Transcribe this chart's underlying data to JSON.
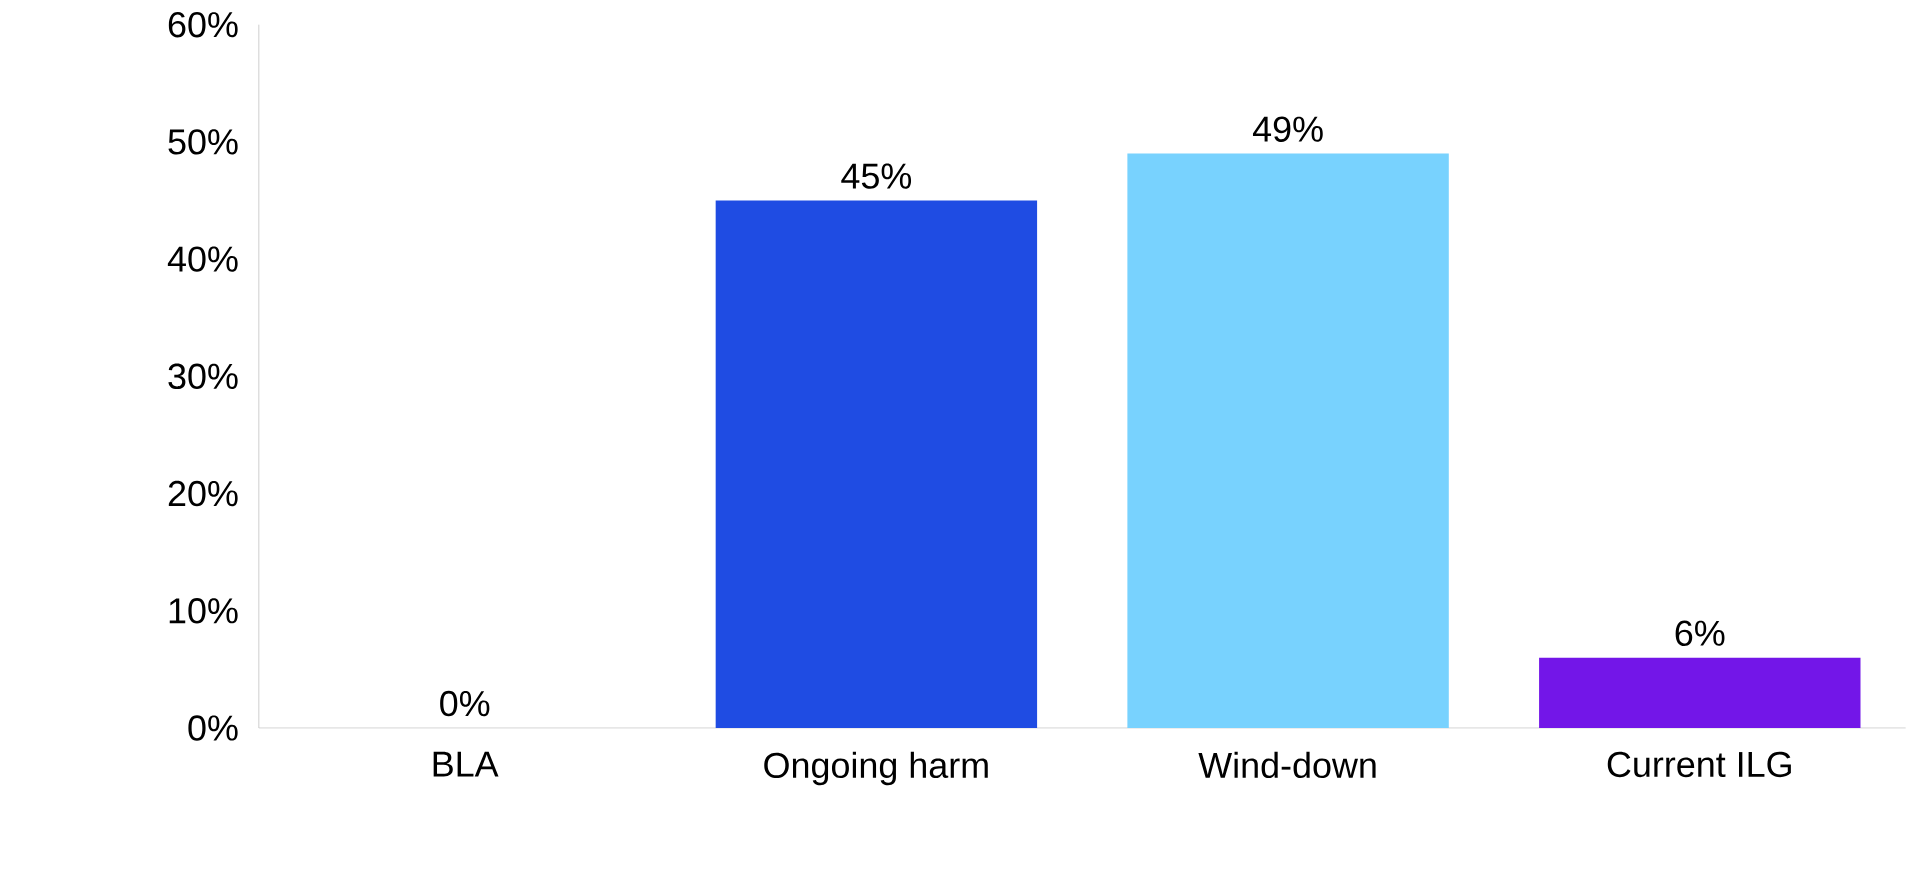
{
  "chart_data": {
    "type": "bar",
    "categories": [
      "BLA",
      "Ongoing harm",
      "Wind-down",
      "Current ILG"
    ],
    "values": [
      0,
      45,
      49,
      6
    ],
    "value_labels": [
      "0%",
      "45%",
      "49%",
      "6%"
    ],
    "colors": [
      "#1f4ce3",
      "#1f4ce3",
      "#78d2fe",
      "#7316e8"
    ],
    "ylim": [
      0,
      60
    ],
    "yticks": [
      {
        "value": 0,
        "label": "0%"
      },
      {
        "value": 10,
        "label": "10%"
      },
      {
        "value": 20,
        "label": "20%"
      },
      {
        "value": 30,
        "label": "30%"
      },
      {
        "value": 40,
        "label": "40%"
      },
      {
        "value": 50,
        "label": "50%"
      },
      {
        "value": 60,
        "label": "60%"
      }
    ],
    "grid": false
  }
}
